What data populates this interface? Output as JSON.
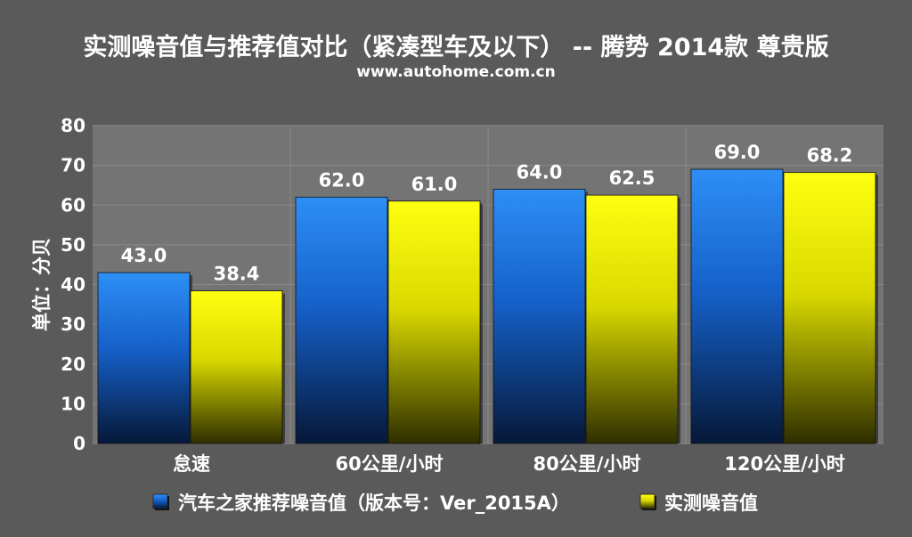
{
  "chart_data": {
    "type": "bar",
    "title": "实测噪音值与推荐值对比（紧凑型车及以下） -- 腾势 2014款 尊贵版",
    "subtitle": "www.autohome.com.cn",
    "ylabel": "单位：分贝",
    "ylim": [
      0,
      80
    ],
    "yticks": [
      0,
      10,
      20,
      30,
      40,
      50,
      60,
      70,
      80
    ],
    "categories": [
      "怠速",
      "60公里/小时",
      "80公里/小时",
      "120公里/小时"
    ],
    "series": [
      {
        "name": "汽车之家推荐噪音值（版本号：Ver_2015A）",
        "values": [
          43.0,
          62.0,
          64.0,
          69.0
        ],
        "value_labels": [
          "43.0",
          "62.0",
          "64.0",
          "69.0"
        ],
        "color": "#1e7fe8"
      },
      {
        "name": "实测噪音值",
        "values": [
          38.4,
          61.0,
          62.5,
          68.2
        ],
        "value_labels": [
          "38.4",
          "61.0",
          "62.5",
          "68.2"
        ],
        "color": "#f0f000"
      }
    ],
    "grid": true,
    "legend_position": "bottom",
    "colors": {
      "background": "#5a5a5a",
      "plot_background": "#747474",
      "gridline": "#8a8a8a"
    }
  }
}
